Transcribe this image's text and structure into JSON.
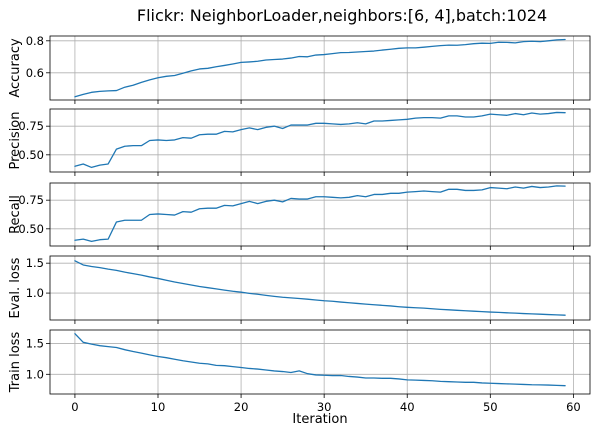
{
  "figure": {
    "title": "Flickr: NeighborLoader,neighbors:[6, 4],batch:1024",
    "xlabel": "Iteration",
    "line_color": "#1f77b4"
  },
  "chart_data": [
    {
      "type": "line",
      "ylabel": "Accuracy",
      "xlim": [
        -3,
        62
      ],
      "ylim": [
        0.43,
        0.83
      ],
      "xticks": [
        0,
        10,
        20,
        30,
        40,
        50,
        60
      ],
      "yticks": [
        0.6,
        0.8
      ],
      "ytick_labels": [
        "0.6",
        "0.8"
      ],
      "grid": true,
      "x": [
        0,
        1,
        2,
        3,
        4,
        5,
        6,
        7,
        8,
        9,
        10,
        11,
        12,
        13,
        14,
        15,
        16,
        17,
        18,
        19,
        20,
        21,
        22,
        23,
        24,
        25,
        26,
        27,
        28,
        29,
        30,
        31,
        32,
        33,
        34,
        35,
        36,
        37,
        38,
        39,
        40,
        41,
        42,
        43,
        44,
        45,
        46,
        47,
        48,
        49,
        50,
        51,
        52,
        53,
        54,
        55,
        56,
        57,
        58,
        59
      ],
      "values": [
        0.45,
        0.465,
        0.478,
        0.484,
        0.487,
        0.489,
        0.51,
        0.522,
        0.54,
        0.556,
        0.569,
        0.578,
        0.583,
        0.597,
        0.612,
        0.624,
        0.628,
        0.638,
        0.646,
        0.655,
        0.665,
        0.668,
        0.672,
        0.68,
        0.683,
        0.686,
        0.692,
        0.702,
        0.7,
        0.711,
        0.714,
        0.72,
        0.726,
        0.727,
        0.73,
        0.733,
        0.736,
        0.742,
        0.747,
        0.753,
        0.756,
        0.756,
        0.76,
        0.765,
        0.77,
        0.773,
        0.772,
        0.776,
        0.782,
        0.785,
        0.784,
        0.791,
        0.79,
        0.787,
        0.795,
        0.797,
        0.795,
        0.8,
        0.806,
        0.808
      ]
    },
    {
      "type": "line",
      "ylabel": "Precision",
      "xlim": [
        -3,
        62
      ],
      "ylim": [
        0.35,
        0.9
      ],
      "xticks": [
        0,
        10,
        20,
        30,
        40,
        50,
        60
      ],
      "yticks": [
        0.5,
        0.75
      ],
      "ytick_labels": [
        "0.50",
        "0.75"
      ],
      "grid": true,
      "x": [
        0,
        1,
        2,
        3,
        4,
        5,
        6,
        7,
        8,
        9,
        10,
        11,
        12,
        13,
        14,
        15,
        16,
        17,
        18,
        19,
        20,
        21,
        22,
        23,
        24,
        25,
        26,
        27,
        28,
        29,
        30,
        31,
        32,
        33,
        34,
        35,
        36,
        37,
        38,
        39,
        40,
        41,
        42,
        43,
        44,
        45,
        46,
        47,
        48,
        49,
        50,
        51,
        52,
        53,
        54,
        55,
        56,
        57,
        58,
        59
      ],
      "values": [
        0.4,
        0.42,
        0.39,
        0.41,
        0.42,
        0.55,
        0.575,
        0.58,
        0.58,
        0.625,
        0.63,
        0.625,
        0.63,
        0.65,
        0.645,
        0.675,
        0.68,
        0.68,
        0.705,
        0.7,
        0.72,
        0.735,
        0.72,
        0.74,
        0.75,
        0.73,
        0.76,
        0.76,
        0.76,
        0.775,
        0.775,
        0.77,
        0.765,
        0.77,
        0.78,
        0.77,
        0.795,
        0.795,
        0.8,
        0.805,
        0.81,
        0.82,
        0.825,
        0.825,
        0.82,
        0.84,
        0.84,
        0.83,
        0.83,
        0.84,
        0.855,
        0.85,
        0.845,
        0.86,
        0.85,
        0.865,
        0.855,
        0.86,
        0.87,
        0.868
      ]
    },
    {
      "type": "line",
      "ylabel": "Recall",
      "xlim": [
        -3,
        62
      ],
      "ylim": [
        0.35,
        0.9
      ],
      "xticks": [
        0,
        10,
        20,
        30,
        40,
        50,
        60
      ],
      "yticks": [
        0.5,
        0.75
      ],
      "ytick_labels": [
        "0.50",
        "0.75"
      ],
      "grid": true,
      "x": [
        0,
        1,
        2,
        3,
        4,
        5,
        6,
        7,
        8,
        9,
        10,
        11,
        12,
        13,
        14,
        15,
        16,
        17,
        18,
        19,
        20,
        21,
        22,
        23,
        24,
        25,
        26,
        27,
        28,
        29,
        30,
        31,
        32,
        33,
        34,
        35,
        36,
        37,
        38,
        39,
        40,
        41,
        42,
        43,
        44,
        45,
        46,
        47,
        48,
        49,
        50,
        51,
        52,
        53,
        54,
        55,
        56,
        57,
        58,
        59
      ],
      "values": [
        0.4,
        0.41,
        0.39,
        0.405,
        0.41,
        0.56,
        0.575,
        0.575,
        0.575,
        0.625,
        0.63,
        0.625,
        0.62,
        0.65,
        0.645,
        0.675,
        0.68,
        0.68,
        0.705,
        0.7,
        0.72,
        0.74,
        0.72,
        0.74,
        0.75,
        0.735,
        0.765,
        0.76,
        0.76,
        0.78,
        0.78,
        0.775,
        0.77,
        0.775,
        0.79,
        0.78,
        0.8,
        0.8,
        0.81,
        0.81,
        0.82,
        0.825,
        0.83,
        0.825,
        0.82,
        0.845,
        0.845,
        0.835,
        0.835,
        0.84,
        0.86,
        0.855,
        0.85,
        0.865,
        0.855,
        0.87,
        0.86,
        0.865,
        0.875,
        0.873
      ]
    },
    {
      "type": "line",
      "ylabel": "Eval. loss",
      "xlim": [
        -3,
        62
      ],
      "ylim": [
        0.55,
        1.62
      ],
      "xticks": [
        0,
        10,
        20,
        30,
        40,
        50,
        60
      ],
      "yticks": [
        1.0,
        1.5
      ],
      "ytick_labels": [
        "1.0",
        "1.5"
      ],
      "grid": true,
      "x": [
        0,
        1,
        2,
        3,
        4,
        5,
        6,
        7,
        8,
        9,
        10,
        11,
        12,
        13,
        14,
        15,
        16,
        17,
        18,
        19,
        20,
        21,
        22,
        23,
        24,
        25,
        26,
        27,
        28,
        29,
        30,
        31,
        32,
        33,
        34,
        35,
        36,
        37,
        38,
        39,
        40,
        41,
        42,
        43,
        44,
        45,
        46,
        47,
        48,
        49,
        50,
        51,
        52,
        53,
        54,
        55,
        56,
        57,
        58,
        59
      ],
      "values": [
        1.54,
        1.47,
        1.445,
        1.425,
        1.4,
        1.38,
        1.35,
        1.325,
        1.3,
        1.27,
        1.245,
        1.215,
        1.185,
        1.16,
        1.135,
        1.11,
        1.09,
        1.07,
        1.05,
        1.03,
        1.015,
        0.995,
        0.98,
        0.962,
        0.945,
        0.93,
        0.92,
        0.91,
        0.898,
        0.885,
        0.872,
        0.863,
        0.85,
        0.838,
        0.827,
        0.815,
        0.805,
        0.795,
        0.785,
        0.772,
        0.762,
        0.755,
        0.748,
        0.738,
        0.728,
        0.72,
        0.712,
        0.705,
        0.697,
        0.69,
        0.683,
        0.677,
        0.67,
        0.665,
        0.658,
        0.653,
        0.647,
        0.641,
        0.636,
        0.63
      ]
    },
    {
      "type": "line",
      "ylabel": "Train loss",
      "xlim": [
        -3,
        62
      ],
      "ylim": [
        0.68,
        1.72
      ],
      "xticks": [
        0,
        10,
        20,
        30,
        40,
        50,
        60
      ],
      "xtick_labels": [
        "0",
        "10",
        "20",
        "30",
        "40",
        "50",
        "60"
      ],
      "yticks": [
        1.0,
        1.5
      ],
      "ytick_labels": [
        "1.0",
        "1.5"
      ],
      "grid": true,
      "x": [
        0,
        1,
        2,
        3,
        4,
        5,
        6,
        7,
        8,
        9,
        10,
        11,
        12,
        13,
        14,
        15,
        16,
        17,
        18,
        19,
        20,
        21,
        22,
        23,
        24,
        25,
        26,
        27,
        28,
        29,
        30,
        31,
        32,
        33,
        34,
        35,
        36,
        37,
        38,
        39,
        40,
        41,
        42,
        43,
        44,
        45,
        46,
        47,
        48,
        49,
        50,
        51,
        52,
        53,
        54,
        55,
        56,
        57,
        58,
        59
      ],
      "values": [
        1.66,
        1.52,
        1.49,
        1.465,
        1.45,
        1.435,
        1.4,
        1.37,
        1.345,
        1.315,
        1.29,
        1.27,
        1.245,
        1.22,
        1.2,
        1.18,
        1.17,
        1.145,
        1.14,
        1.125,
        1.11,
        1.095,
        1.085,
        1.07,
        1.055,
        1.045,
        1.03,
        1.055,
        1.01,
        0.99,
        0.985,
        0.98,
        0.98,
        0.965,
        0.955,
        0.94,
        0.94,
        0.935,
        0.935,
        0.925,
        0.91,
        0.905,
        0.9,
        0.895,
        0.885,
        0.88,
        0.875,
        0.87,
        0.87,
        0.86,
        0.855,
        0.85,
        0.845,
        0.84,
        0.835,
        0.83,
        0.828,
        0.825,
        0.82,
        0.815
      ]
    }
  ]
}
